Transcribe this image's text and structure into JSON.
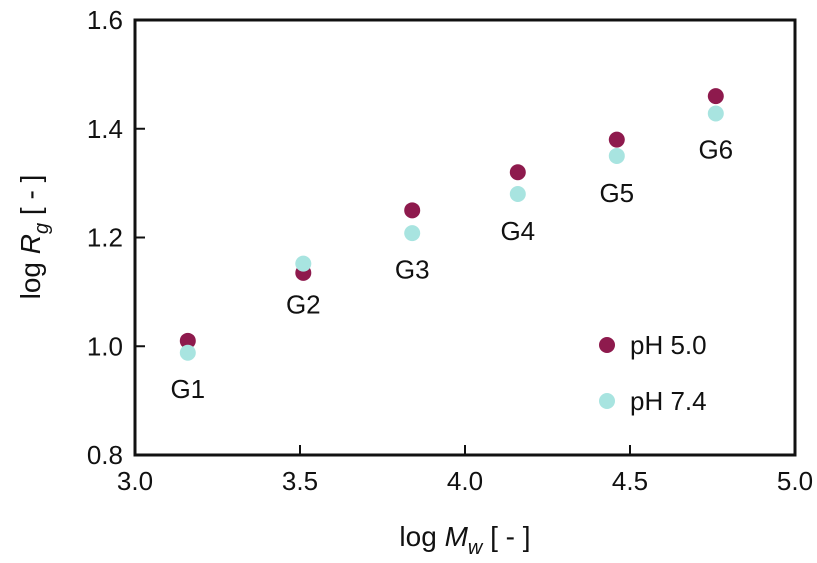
{
  "chart_data": {
    "type": "scatter",
    "xlabel": {
      "prefix": "log ",
      "var": "M",
      "sub": "w",
      "suffix": "  [ - ]"
    },
    "ylabel": {
      "prefix": "log ",
      "var": "R",
      "sub": "g",
      "suffix": "  [ - ]"
    },
    "xlim": [
      3.0,
      5.0
    ],
    "ylim": [
      0.8,
      1.6
    ],
    "x_ticks": [
      3.0,
      3.5,
      4.0,
      4.5,
      5.0
    ],
    "x_tick_labels": [
      "3.0",
      "3.5",
      "4.0",
      "4.5",
      "5.0"
    ],
    "y_ticks": [
      0.8,
      1.0,
      1.2,
      1.4,
      1.6
    ],
    "y_tick_labels": [
      "0.8",
      "1.0",
      "1.2",
      "1.4",
      "1.6"
    ],
    "grid": false,
    "legend_position": "bottom-right",
    "series": [
      {
        "name": "pH 5.0",
        "color": "#8e1a4d",
        "points": [
          {
            "x": 3.16,
            "y": 1.01
          },
          {
            "x": 3.51,
            "y": 1.135
          },
          {
            "x": 3.84,
            "y": 1.25
          },
          {
            "x": 4.16,
            "y": 1.32
          },
          {
            "x": 4.46,
            "y": 1.38
          },
          {
            "x": 4.76,
            "y": 1.46
          }
        ]
      },
      {
        "name": "pH 7.4",
        "color": "#a8e4e0",
        "points": [
          {
            "x": 3.16,
            "y": 0.988
          },
          {
            "x": 3.51,
            "y": 1.152
          },
          {
            "x": 3.84,
            "y": 1.208
          },
          {
            "x": 4.16,
            "y": 1.28
          },
          {
            "x": 4.46,
            "y": 1.35
          },
          {
            "x": 4.76,
            "y": 1.428
          }
        ]
      }
    ],
    "annotations": [
      {
        "text": "G1",
        "x": 3.16,
        "y": 0.905
      },
      {
        "text": "G2",
        "x": 3.51,
        "y": 1.06
      },
      {
        "text": "G3",
        "x": 3.84,
        "y": 1.125
      },
      {
        "text": "G4",
        "x": 4.16,
        "y": 1.195
      },
      {
        "text": "G5",
        "x": 4.46,
        "y": 1.265
      },
      {
        "text": "G6",
        "x": 4.76,
        "y": 1.345
      }
    ]
  }
}
